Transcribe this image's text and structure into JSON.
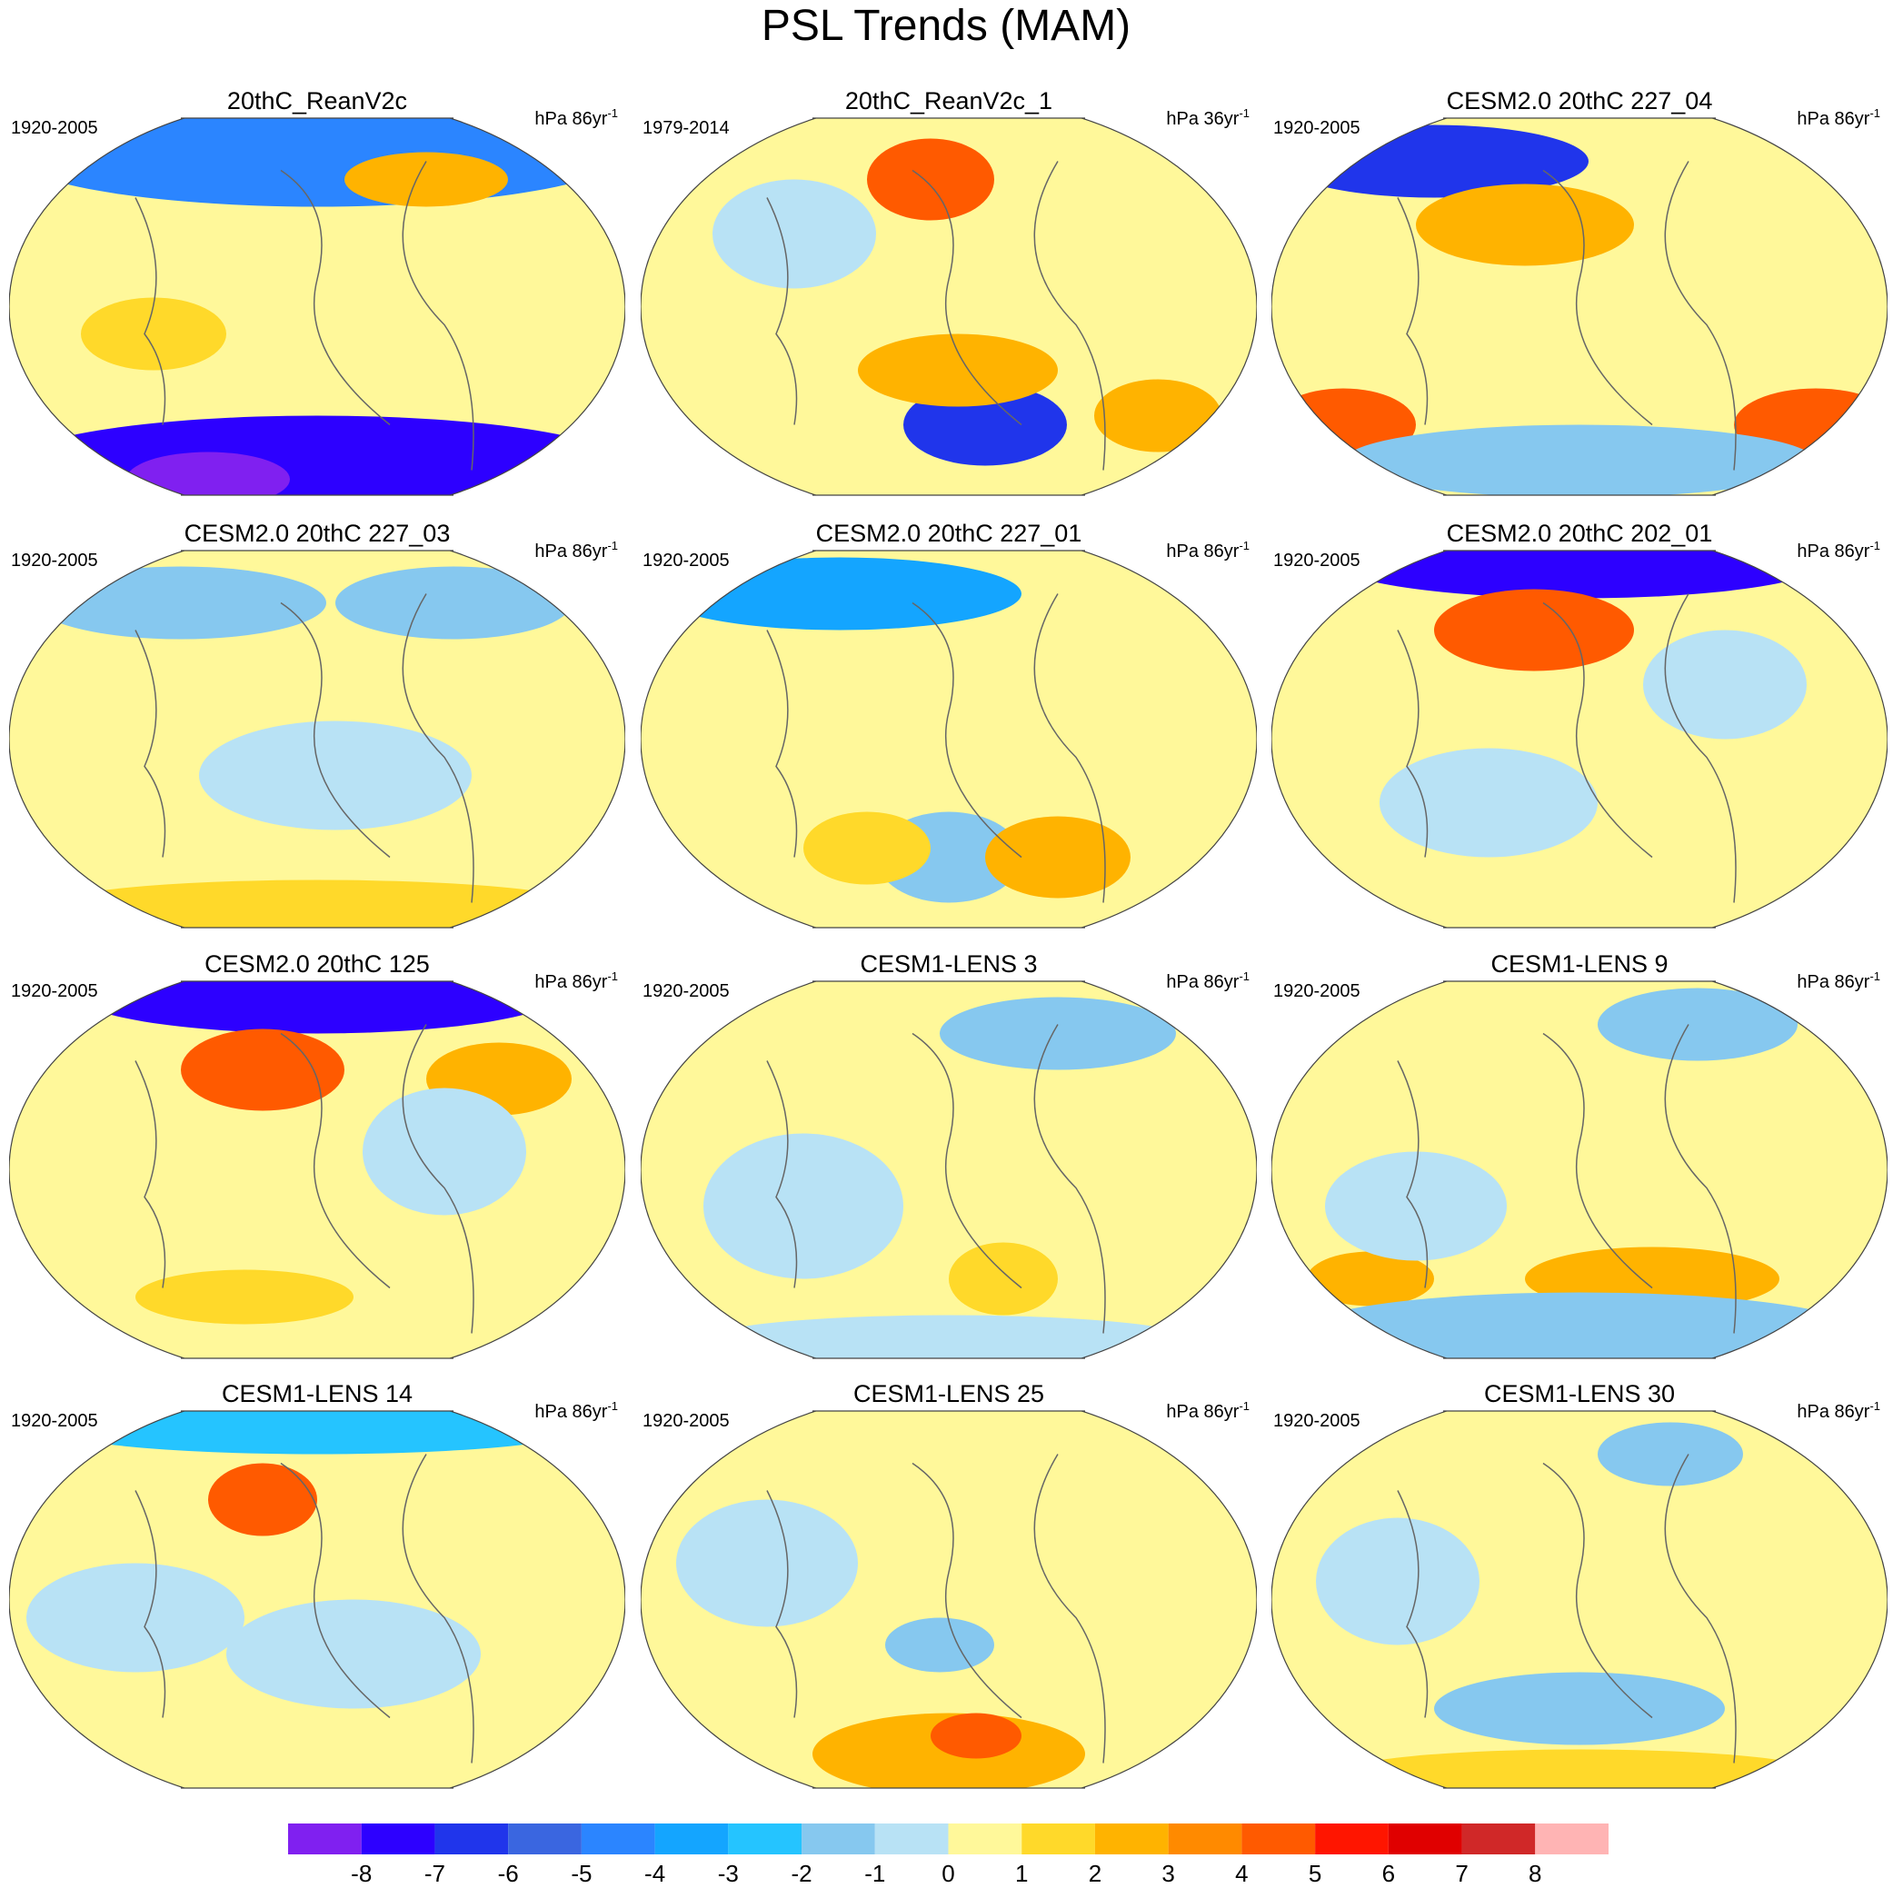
{
  "title": "PSL Trends (MAM)",
  "panels": [
    {
      "title": "20thC_ReanV2c",
      "period": "1920-2005",
      "units": "hPa 86yr",
      "units_sup": "-1"
    },
    {
      "title": "20thC_ReanV2c_1",
      "period": "1979-2014",
      "units": "hPa 36yr",
      "units_sup": "-1"
    },
    {
      "title": "CESM2.0 20thC 227_04",
      "period": "1920-2005",
      "units": "hPa 86yr",
      "units_sup": "-1"
    },
    {
      "title": "CESM2.0 20thC 227_03",
      "period": "1920-2005",
      "units": "hPa 86yr",
      "units_sup": "-1"
    },
    {
      "title": "CESM2.0 20thC 227_01",
      "period": "1920-2005",
      "units": "hPa 86yr",
      "units_sup": "-1"
    },
    {
      "title": "CESM2.0 20thC 202_01",
      "period": "1920-2005",
      "units": "hPa 86yr",
      "units_sup": "-1"
    },
    {
      "title": "CESM2.0 20thC 125",
      "period": "1920-2005",
      "units": "hPa 86yr",
      "units_sup": "-1"
    },
    {
      "title": "CESM1-LENS 3",
      "period": "1920-2005",
      "units": "hPa 86yr",
      "units_sup": "-1"
    },
    {
      "title": "CESM1-LENS 9",
      "period": "1920-2005",
      "units": "hPa 86yr",
      "units_sup": "-1"
    },
    {
      "title": "CESM1-LENS 14",
      "period": "1920-2005",
      "units": "hPa 86yr",
      "units_sup": "-1"
    },
    {
      "title": "CESM1-LENS 25",
      "period": "1920-2005",
      "units": "hPa 86yr",
      "units_sup": "-1"
    },
    {
      "title": "CESM1-LENS 30",
      "period": "1920-2005",
      "units": "hPa 86yr",
      "units_sup": "-1"
    }
  ],
  "colorbar": {
    "colors": [
      "#8020f0",
      "#2d00ff",
      "#2035eb",
      "#3a66e0",
      "#2b85ff",
      "#14a5ff",
      "#25c4ff",
      "#86c8ef",
      "#b8e2f5",
      "#fff89a",
      "#ffd92a",
      "#ffb300",
      "#ff8a00",
      "#ff5a00",
      "#ff1500",
      "#e00000",
      "#d02828",
      "#ffb4b4"
    ],
    "levels": [
      -8,
      -7,
      -6,
      -5,
      -4,
      -3,
      -2,
      -1,
      0,
      1,
      2,
      3,
      4,
      5,
      6,
      7,
      8
    ]
  }
}
